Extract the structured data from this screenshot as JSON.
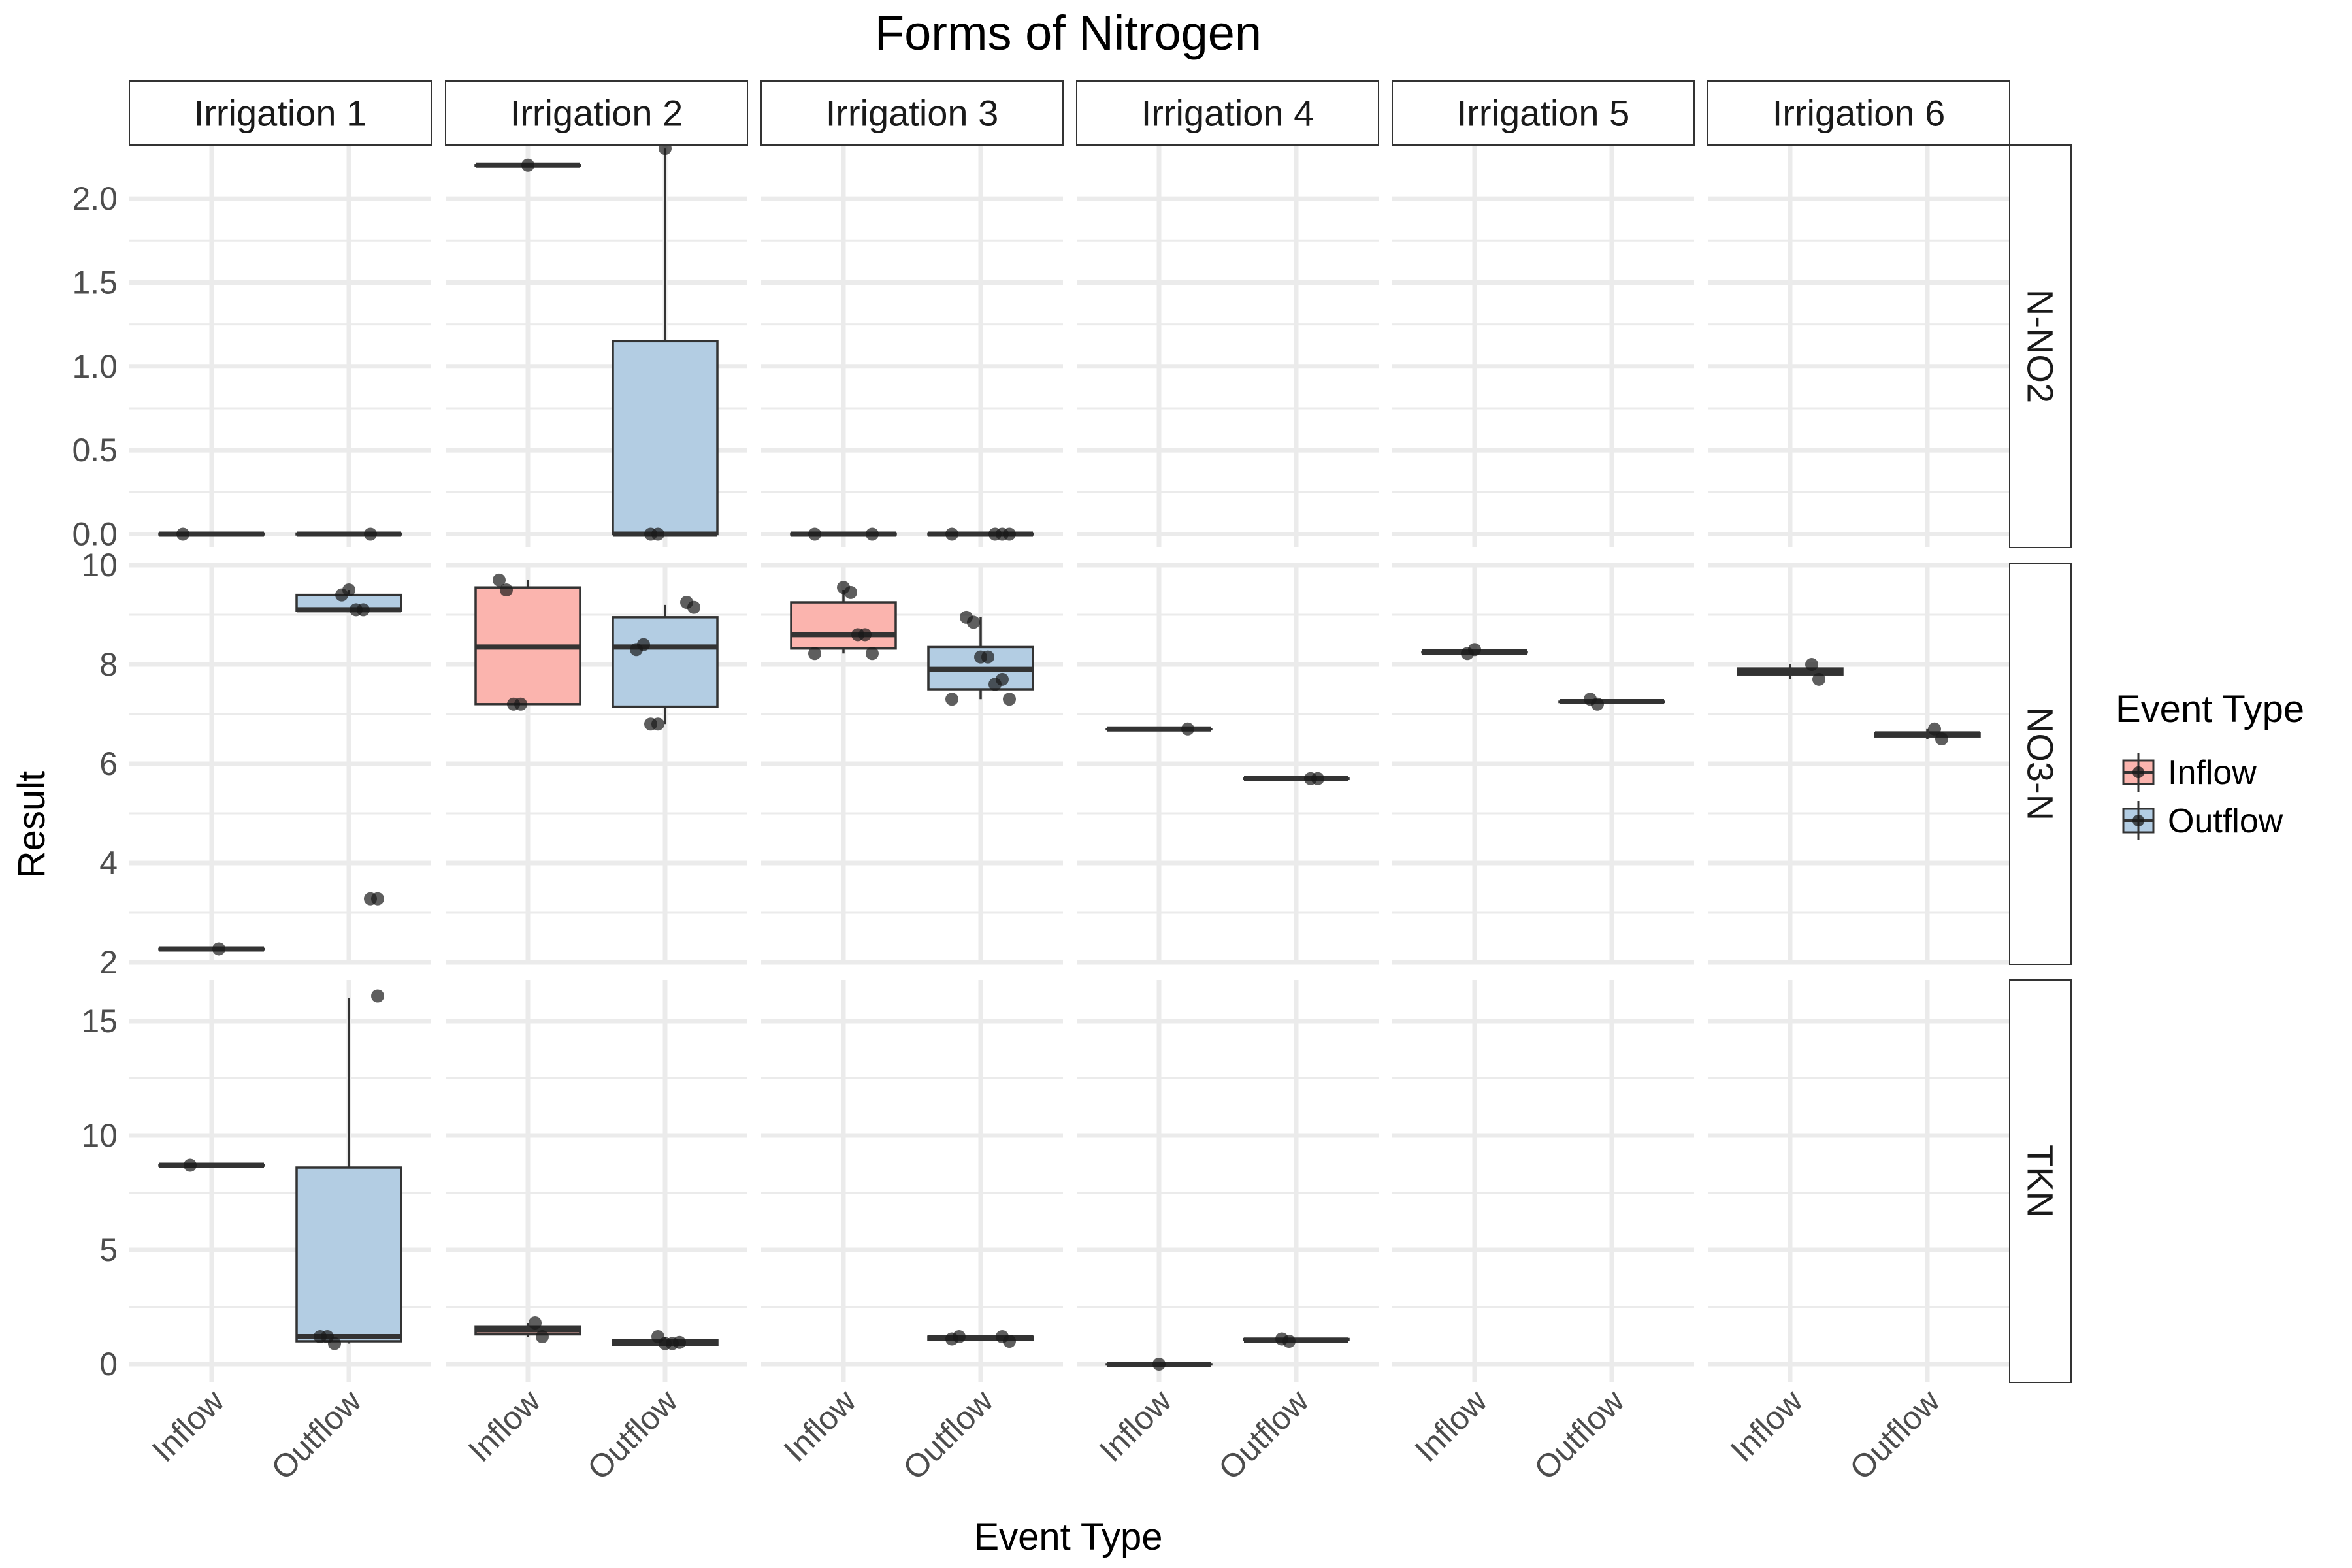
{
  "chart_data": {
    "type": "boxplot",
    "title": "Forms of Nitrogen",
    "xlabel": "Event Type",
    "ylabel": "Result",
    "categories": [
      "Inflow",
      "Outflow"
    ],
    "columns": [
      "Irrigation 1",
      "Irrigation 2",
      "Irrigation 3",
      "Irrigation 4",
      "Irrigation 5",
      "Irrigation 6"
    ],
    "legend": {
      "title": "Event Type",
      "placement": "right",
      "entries": [
        {
          "label": "Inflow",
          "color": "#FBB4AE"
        },
        {
          "label": "Outflow",
          "color": "#B3CDE3"
        }
      ]
    },
    "rows": [
      {
        "name": "N-NO2",
        "ylim": [
          -0.08,
          2.32
        ],
        "ticks": [
          0,
          0.5,
          1,
          1.5,
          2
        ],
        "tick_labels": [
          "0.0",
          "0.5",
          "1.0",
          "1.5",
          "2.0"
        ],
        "cells": [
          [
            {
              "q1": 0,
              "median": 0,
              "q3": 0,
              "lower": 0,
              "upper": 0,
              "points": [
                0
              ]
            },
            {
              "q1": 0,
              "median": 0,
              "q3": 0,
              "lower": 0,
              "upper": 0,
              "points": [
                0
              ]
            }
          ],
          [
            {
              "q1": 2.2,
              "median": 2.2,
              "q3": 2.2,
              "lower": 2.2,
              "upper": 2.2,
              "points": [
                2.2
              ]
            },
            {
              "q1": 0,
              "median": 0,
              "q3": 1.15,
              "lower": 0,
              "upper": 2.3,
              "points": [
                0,
                0,
                2.3
              ]
            }
          ],
          [
            {
              "q1": 0,
              "median": 0,
              "q3": 0,
              "lower": 0,
              "upper": 0,
              "points": [
                0,
                0
              ]
            },
            {
              "q1": 0,
              "median": 0,
              "q3": 0,
              "lower": 0,
              "upper": 0,
              "points": [
                0,
                0,
                0,
                0
              ]
            }
          ],
          [
            null,
            null
          ],
          [
            null,
            null
          ],
          [
            null,
            null
          ]
        ]
      },
      {
        "name": "NO3-N",
        "ylim": [
          1.96,
          10.04
        ],
        "ticks": [
          2,
          4,
          6,
          8,
          10
        ],
        "tick_labels": [
          "2",
          "4",
          "6",
          "8",
          "10"
        ],
        "cells": [
          [
            {
              "q1": 2.27,
              "median": 2.27,
              "q3": 2.27,
              "lower": 2.27,
              "upper": 2.27,
              "points": [
                2.27
              ]
            },
            {
              "q1": 9.08,
              "median": 9.1,
              "q3": 9.4,
              "lower": 9.08,
              "upper": 9.5,
              "points": [
                9.4,
                9.5,
                9.1,
                9.1,
                3.28,
                3.28
              ]
            }
          ],
          [
            {
              "q1": 7.2,
              "median": 8.35,
              "q3": 9.55,
              "lower": 7.2,
              "upper": 9.7,
              "points": [
                9.7,
                9.5,
                7.2,
                7.2
              ]
            },
            {
              "q1": 7.15,
              "median": 8.35,
              "q3": 8.95,
              "lower": 6.8,
              "upper": 9.2,
              "points": [
                9.25,
                9.15,
                8.3,
                8.4,
                6.8,
                6.8
              ]
            }
          ],
          [
            {
              "q1": 8.32,
              "median": 8.6,
              "q3": 9.25,
              "lower": 8.22,
              "upper": 9.5,
              "points": [
                9.55,
                9.45,
                8.6,
                8.6,
                8.22,
                8.22
              ]
            },
            {
              "q1": 7.5,
              "median": 7.9,
              "q3": 8.35,
              "lower": 7.3,
              "upper": 8.95,
              "points": [
                8.95,
                8.85,
                8.15,
                8.15,
                7.6,
                7.7,
                7.3,
                7.3
              ]
            }
          ],
          [
            {
              "q1": 6.7,
              "median": 6.7,
              "q3": 6.7,
              "lower": 6.7,
              "upper": 6.7,
              "points": [
                6.7
              ]
            },
            {
              "q1": 5.7,
              "median": 5.7,
              "q3": 5.7,
              "lower": 5.7,
              "upper": 5.7,
              "points": [
                5.7,
                5.7
              ]
            }
          ],
          [
            {
              "q1": 8.25,
              "median": 8.25,
              "q3": 8.25,
              "lower": 8.22,
              "upper": 8.3,
              "points": [
                8.22,
                8.3
              ]
            },
            {
              "q1": 7.25,
              "median": 7.25,
              "q3": 7.25,
              "lower": 7.2,
              "upper": 7.3,
              "points": [
                7.3,
                7.2
              ]
            }
          ],
          [
            {
              "q1": 7.8,
              "median": 7.85,
              "q3": 7.92,
              "lower": 7.7,
              "upper": 8.0,
              "points": [
                8.0,
                7.7
              ]
            },
            {
              "q1": 6.55,
              "median": 6.6,
              "q3": 6.62,
              "lower": 6.5,
              "upper": 6.7,
              "points": [
                6.7,
                6.5
              ]
            }
          ]
        ]
      },
      {
        "name": "TKN",
        "ylim": [
          -0.8,
          16.8
        ],
        "ticks": [
          0,
          5,
          10,
          15
        ],
        "tick_labels": [
          "0",
          "5",
          "10",
          "15"
        ],
        "cells": [
          [
            {
              "q1": 8.7,
              "median": 8.7,
              "q3": 8.7,
              "lower": 8.7,
              "upper": 8.7,
              "points": [
                8.7
              ]
            },
            {
              "q1": 1.0,
              "median": 1.2,
              "q3": 8.6,
              "lower": 0.9,
              "upper": 16.0,
              "points": [
                16.1,
                1.2,
                1.2,
                0.9
              ]
            }
          ],
          [
            {
              "q1": 1.3,
              "median": 1.5,
              "q3": 1.65,
              "lower": 1.2,
              "upper": 1.8,
              "points": [
                1.8,
                1.2
              ]
            },
            {
              "q1": 0.85,
              "median": 0.95,
              "q3": 1.05,
              "lower": 0.85,
              "upper": 1.2,
              "points": [
                1.2,
                0.9,
                0.9,
                0.95
              ]
            }
          ],
          [
            null,
            {
              "q1": 1.05,
              "median": 1.15,
              "q3": 1.2,
              "lower": 1.0,
              "upper": 1.25,
              "points": [
                1.2,
                1.0,
                1.1,
                1.2
              ]
            }
          ],
          [
            {
              "q1": 0,
              "median": 0,
              "q3": 0,
              "lower": 0,
              "upper": 0,
              "points": [
                0
              ]
            },
            {
              "q1": 1.05,
              "median": 1.05,
              "q3": 1.1,
              "lower": 1.0,
              "upper": 1.1,
              "points": [
                1.1,
                1.0
              ]
            }
          ],
          [
            null,
            null
          ],
          [
            null,
            null
          ]
        ]
      }
    ]
  }
}
